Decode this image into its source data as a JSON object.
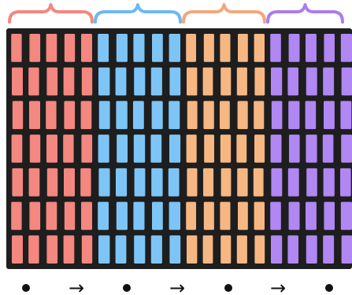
{
  "diagram": {
    "groups": [
      {
        "id": "group-red",
        "color": "#f4877f",
        "brace_color": "#f4877f"
      },
      {
        "id": "group-blue",
        "color": "#7ec5f7",
        "brace_color": "#6fb8f2"
      },
      {
        "id": "group-orange",
        "color": "#f6b783",
        "brace_color": "#f4a77c"
      },
      {
        "id": "group-purple",
        "color": "#b087f3",
        "brace_color": "#a97eec"
      }
    ],
    "grid_color": "#1e1e1e",
    "background": "#ffffff",
    "rows": 7,
    "columns_per_group": 5,
    "bottom_sequence": [
      "dot",
      "arrow",
      "dot",
      "arrow",
      "dot",
      "arrow",
      "dot"
    ],
    "arrow_label": "→"
  }
}
